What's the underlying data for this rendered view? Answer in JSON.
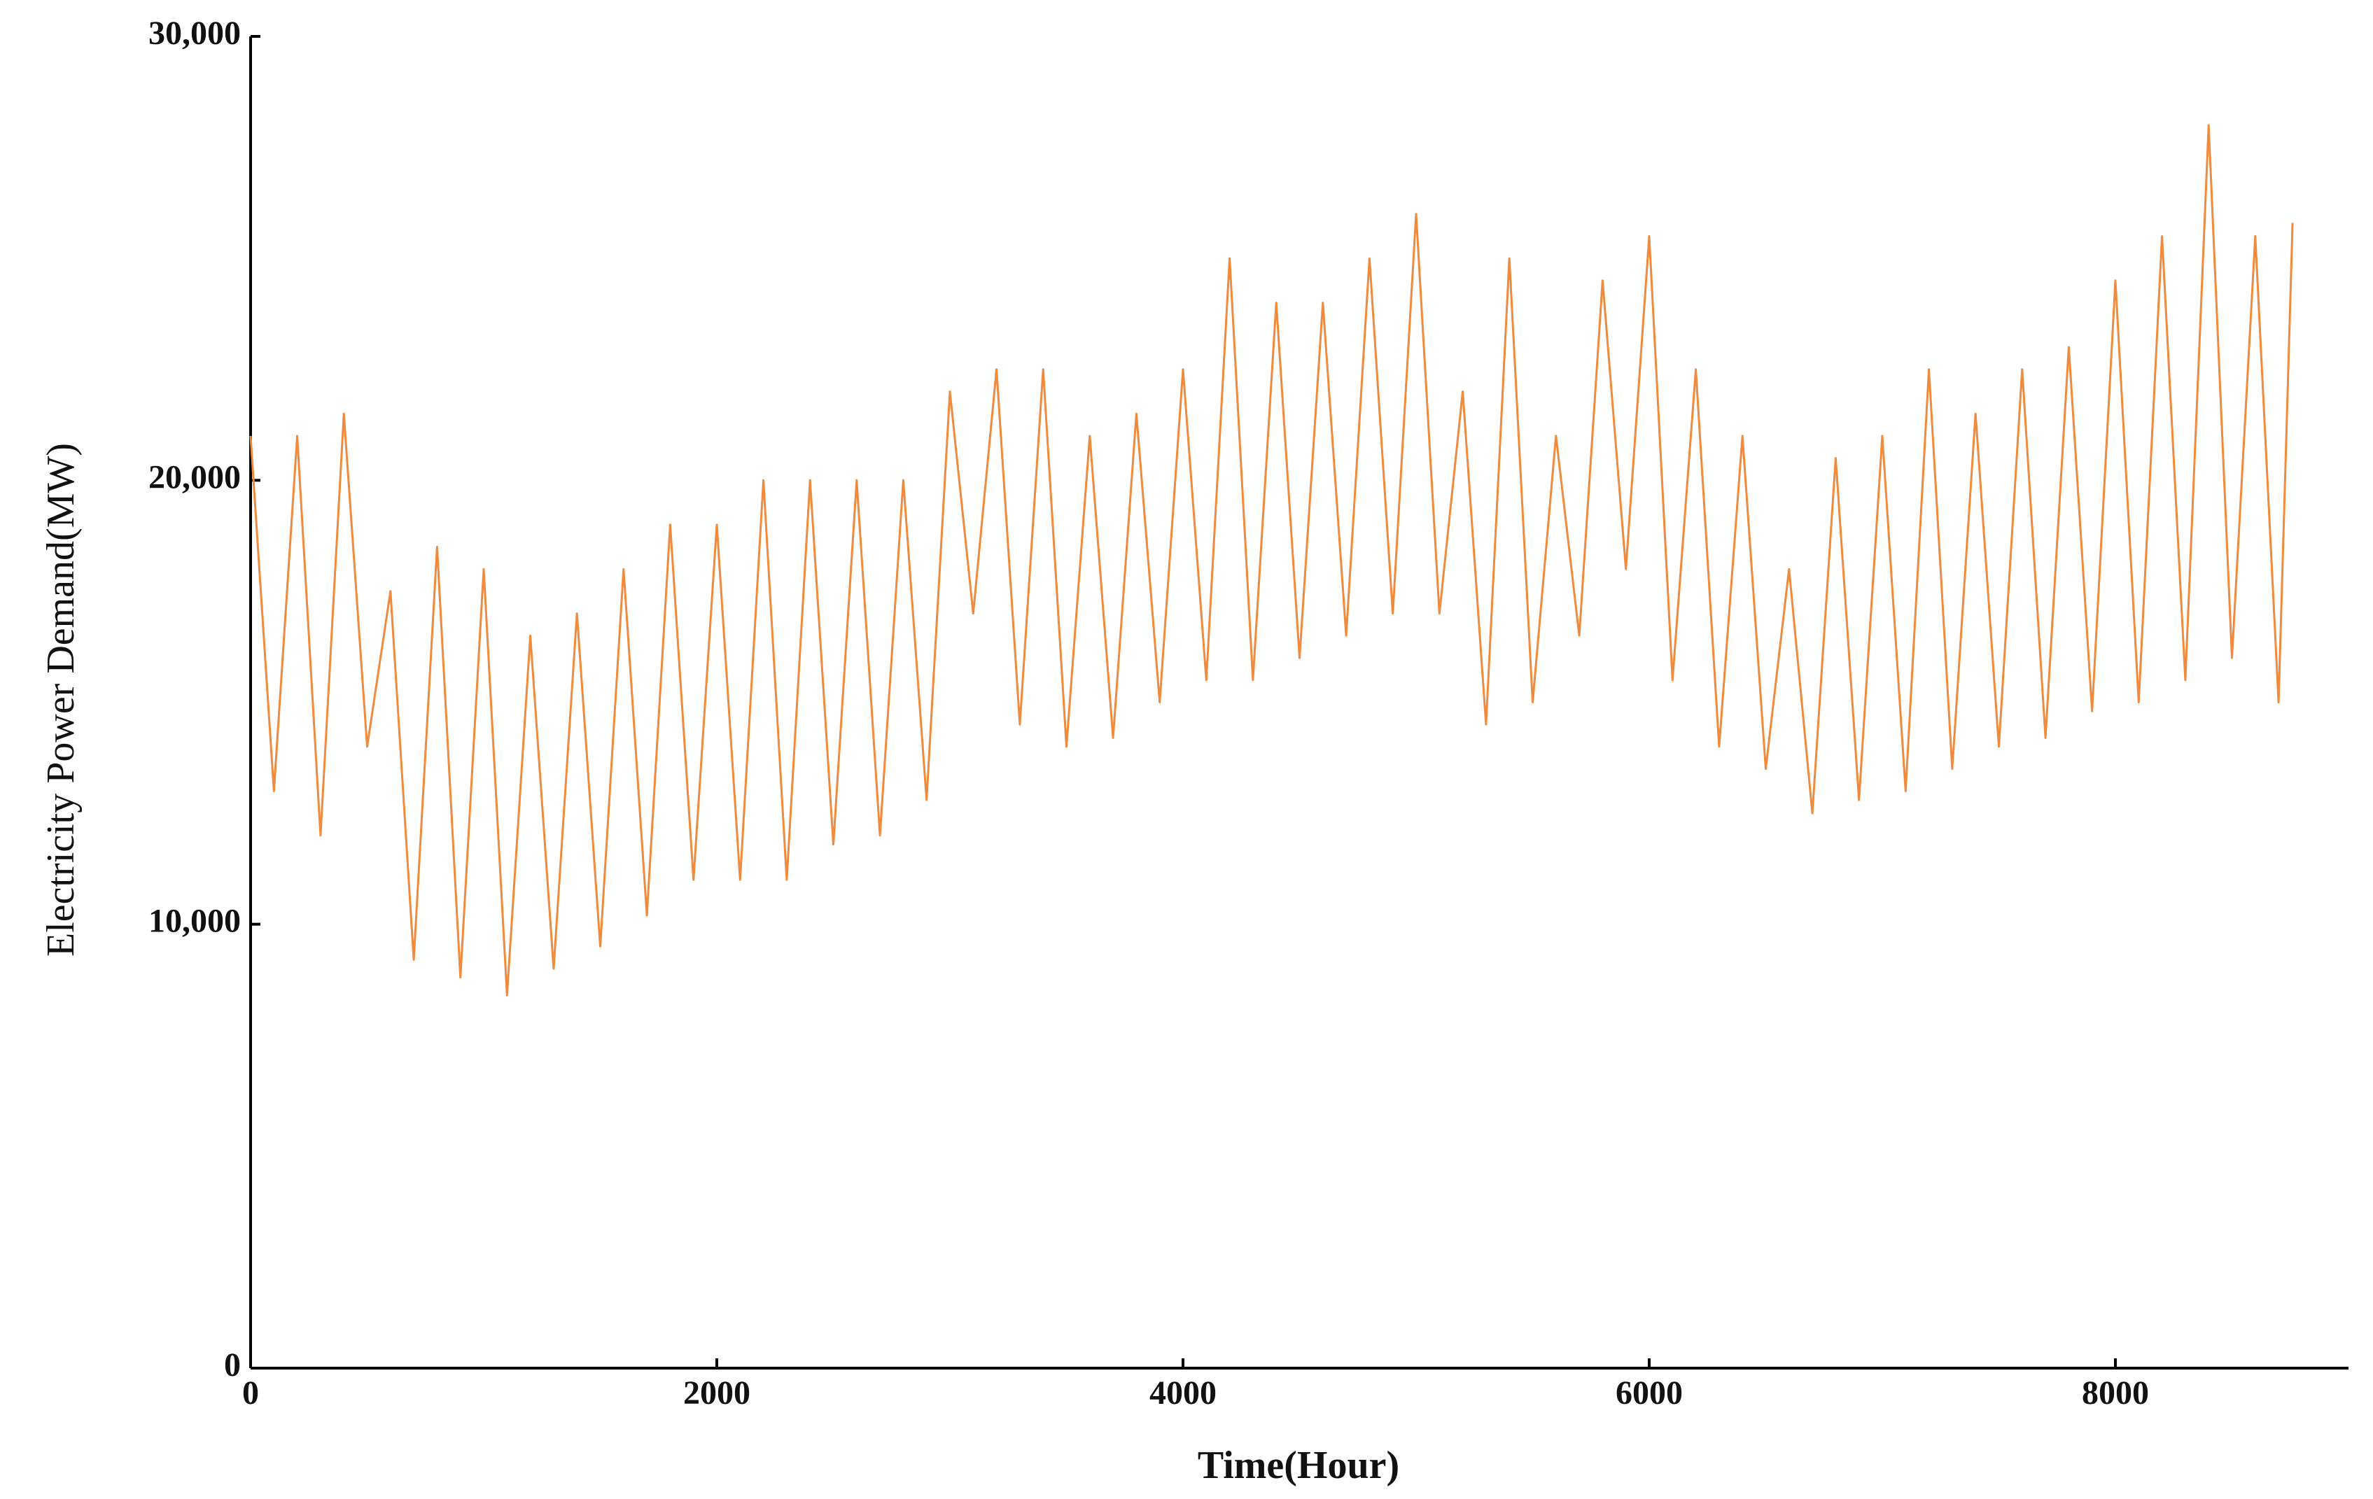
{
  "chart_data": {
    "type": "line",
    "x_label": "Time(Hour)",
    "y_label": "Electricity Power Demand(MW)",
    "color": "#f08a3c",
    "x": [
      0,
      100,
      200,
      300,
      400,
      500,
      600,
      700,
      800,
      900,
      1000,
      1100,
      1200,
      1300,
      1400,
      1500,
      1600,
      1700,
      1800,
      1900,
      2000,
      2100,
      2200,
      2300,
      2400,
      2500,
      2600,
      2700,
      2800,
      2900,
      3000,
      3100,
      3200,
      3300,
      3400,
      3500,
      3600,
      3700,
      3800,
      3900,
      4000,
      4100,
      4200,
      4300,
      4400,
      4500,
      4600,
      4700,
      4800,
      4900,
      5000,
      5100,
      5200,
      5300,
      5400,
      5500,
      5600,
      5700,
      5800,
      5900,
      6000,
      6100,
      6200,
      6300,
      6400,
      6500,
      6600,
      6700,
      6800,
      6900,
      7000,
      7100,
      7200,
      7300,
      7400,
      7500,
      7600,
      7700,
      7800,
      7900,
      8000,
      8100,
      8200,
      8300,
      8400,
      8500,
      8600,
      8700,
      8760
    ],
    "values": [
      21000,
      13000,
      21000,
      12000,
      21500,
      14000,
      17500,
      9200,
      18500,
      8800,
      18000,
      8400,
      16500,
      9000,
      17000,
      9500,
      18000,
      10200,
      19000,
      11000,
      19000,
      11000,
      20000,
      11000,
      20000,
      11800,
      20000,
      12000,
      20000,
      12800,
      22000,
      17000,
      22500,
      14500,
      22500,
      14000,
      21000,
      14200,
      21500,
      15000,
      22500,
      15500,
      25000,
      15500,
      24000,
      16000,
      24000,
      16500,
      25000,
      17000,
      26000,
      17000,
      22000,
      14500,
      25000,
      15000,
      21000,
      16500,
      24500,
      18000,
      25500,
      15500,
      22500,
      14000,
      21000,
      13500,
      18000,
      12500,
      20500,
      12800,
      21000,
      13000,
      22500,
      13500,
      21500,
      14000,
      22500,
      14200,
      23000,
      14800,
      24500,
      15000,
      25500,
      15500,
      28000,
      16000,
      25500,
      15000,
      25800
    ],
    "xlim": [
      0,
      9000
    ],
    "ylim": [
      0,
      30000
    ],
    "xticks": [
      0,
      2000,
      4000,
      6000,
      8000
    ],
    "yticks": [
      0,
      {
        "value": 10000,
        "label": "10,000"
      },
      {
        "value": 20000,
        "label": "20,000"
      },
      {
        "value": 30000,
        "label": "30,000"
      }
    ]
  }
}
